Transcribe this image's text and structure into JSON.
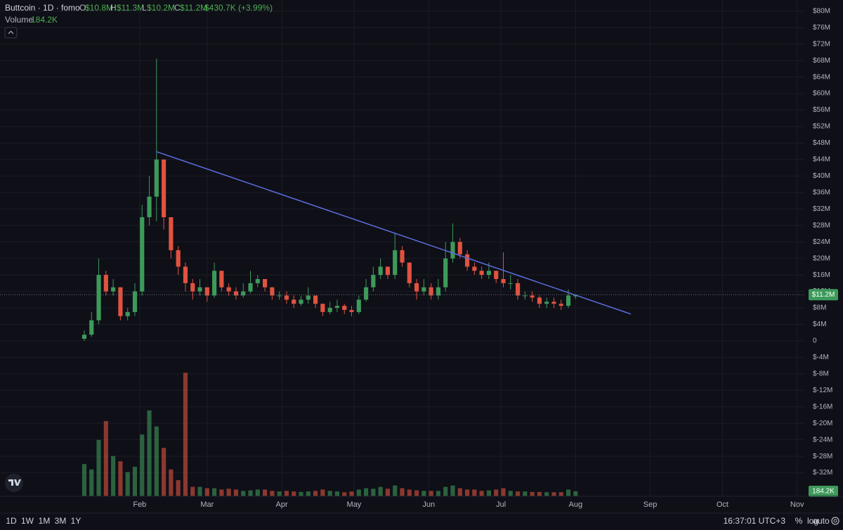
{
  "chart_data": {
    "type": "candlestick",
    "title": "Buttcoin · 1D · fomo",
    "legend": {
      "open_key": "O",
      "open": "$10.8M",
      "high_key": "H",
      "high": "$11.3M",
      "low_key": "L",
      "low": "$10.2M",
      "close_key": "C",
      "change": "$430.7K (+3.99%)",
      "volume_key": "Volume"
    },
    "up_color": "#3d9a5a",
    "down_color": "#e0533f",
    "x": [
      9,
      12,
      15,
      18,
      21,
      24,
      27,
      30,
      33,
      36,
      39,
      42,
      45,
      48,
      51,
      54,
      57,
      60,
      63,
      66,
      69,
      72,
      75,
      78,
      81,
      84,
      87,
      90,
      93,
      96,
      99,
      102,
      105,
      108,
      111,
      114,
      117,
      120,
      123,
      126,
      129,
      132,
      135,
      138,
      141,
      144,
      147,
      150,
      153,
      156,
      159,
      162,
      165,
      168,
      171,
      174,
      177,
      180,
      183,
      186,
      189,
      192,
      195,
      198,
      201,
      204,
      207,
      210,
      213
    ],
    "open": [
      0.5,
      1.5,
      5,
      16,
      12,
      13,
      6,
      7,
      12,
      30,
      35,
      44,
      30,
      22,
      18,
      14,
      12,
      13,
      11,
      17,
      13,
      12,
      11,
      12,
      14,
      15,
      13,
      11,
      11,
      10,
      9,
      10,
      11,
      9,
      7,
      8,
      8.5,
      7.5,
      7,
      10,
      13,
      16,
      18,
      16,
      22,
      19,
      14,
      12,
      13,
      11,
      13,
      20,
      24,
      21,
      18,
      17,
      16,
      17,
      15,
      14,
      14,
      11,
      11,
      10.5,
      9,
      9.5,
      9,
      8.5,
      10.8
    ],
    "high": [
      2.5,
      7,
      20,
      17,
      15,
      13,
      8,
      14,
      33,
      40,
      68.5,
      44,
      30,
      23,
      19,
      15,
      15,
      13,
      19,
      17,
      14,
      13,
      14,
      17,
      16,
      15,
      13,
      12,
      12,
      11,
      11,
      13,
      11,
      9,
      9.5,
      10,
      9,
      8.5,
      11,
      15,
      18,
      20,
      18,
      26,
      23,
      19,
      15,
      15,
      14,
      15,
      24,
      28.5,
      25,
      22,
      19,
      18,
      19,
      17,
      21.5,
      16,
      15,
      12,
      12,
      11,
      10.5,
      10.5,
      10,
      12.5,
      11.3
    ],
    "low": [
      0,
      1,
      4,
      11,
      11,
      5,
      5,
      6,
      11,
      28,
      29,
      27,
      20,
      16,
      12,
      10,
      11,
      9.5,
      10.5,
      12,
      11,
      10,
      10.5,
      11.5,
      13,
      12,
      10,
      10,
      9,
      8,
      8.5,
      9,
      8,
      6,
      6.5,
      7,
      6.5,
      6,
      6.5,
      9.5,
      12,
      15,
      15,
      15,
      18,
      13,
      10,
      11,
      10,
      10,
      12,
      19,
      20,
      17,
      16,
      15,
      15,
      14,
      13,
      12.5,
      10,
      10,
      9.5,
      8,
      8,
      8,
      7.5,
      8,
      10.2
    ],
    "close": [
      1.5,
      5,
      16,
      12,
      13,
      6,
      7,
      12,
      30,
      35,
      44,
      30,
      22,
      18,
      14,
      12,
      13,
      11,
      17,
      13,
      12,
      11,
      12,
      14,
      15,
      13,
      11,
      11,
      10,
      9,
      10,
      11,
      9,
      7,
      8,
      8.5,
      7.5,
      7,
      10,
      13,
      16,
      18,
      16,
      22,
      19,
      14,
      12,
      13,
      11,
      13,
      20,
      24,
      21,
      18,
      17,
      16,
      17,
      15,
      14,
      14,
      11,
      11,
      10.5,
      9,
      9.5,
      9,
      8.5,
      11,
      11.2
    ],
    "volume": [
      1200,
      1000,
      2100,
      2800,
      1500,
      1300,
      900,
      1100,
      2300,
      3200,
      2600,
      1800,
      1000,
      600,
      4600,
      350,
      350,
      300,
      300,
      250,
      280,
      250,
      200,
      220,
      250,
      250,
      200,
      180,
      200,
      180,
      160,
      180,
      200,
      250,
      200,
      180,
      150,
      180,
      250,
      300,
      280,
      350,
      280,
      400,
      300,
      250,
      220,
      200,
      200,
      200,
      350,
      400,
      300,
      250,
      250,
      200,
      220,
      250,
      300,
      200,
      180,
      180,
      160,
      160,
      150,
      150,
      150,
      250,
      184.2
    ],
    "xlim": [
      -26,
      308
    ],
    "xticks": [
      {
        "value": 32,
        "label": "Feb"
      },
      {
        "value": 60,
        "label": "Mar"
      },
      {
        "value": 91,
        "label": "Apr"
      },
      {
        "value": 121,
        "label": "May"
      },
      {
        "value": 152,
        "label": "Jun"
      },
      {
        "value": 182,
        "label": "Jul"
      },
      {
        "value": 213,
        "label": "Aug"
      },
      {
        "value": 244,
        "label": "Sep"
      },
      {
        "value": 274,
        "label": "Oct"
      },
      {
        "value": 305,
        "label": "Nov"
      }
    ],
    "ylim": [
      -37.7,
      82.7
    ],
    "yticks": [
      {
        "value": 80,
        "label": "$80M"
      },
      {
        "value": 76,
        "label": "$76M"
      },
      {
        "value": 72,
        "label": "$72M"
      },
      {
        "value": 68,
        "label": "$68M"
      },
      {
        "value": 64,
        "label": "$64M"
      },
      {
        "value": 60,
        "label": "$60M"
      },
      {
        "value": 56,
        "label": "$56M"
      },
      {
        "value": 52,
        "label": "$52M"
      },
      {
        "value": 48,
        "label": "$48M"
      },
      {
        "value": 44,
        "label": "$44M"
      },
      {
        "value": 40,
        "label": "$40M"
      },
      {
        "value": 36,
        "label": "$36M"
      },
      {
        "value": 32,
        "label": "$32M"
      },
      {
        "value": 28,
        "label": "$28M"
      },
      {
        "value": 24,
        "label": "$24M"
      },
      {
        "value": 20,
        "label": "$20M"
      },
      {
        "value": 16,
        "label": "$16M"
      },
      {
        "value": 12,
        "label": "$12M"
      },
      {
        "value": 8,
        "label": "$8M"
      },
      {
        "value": 4,
        "label": "$4M"
      },
      0,
      {
        "value": -4,
        "label": "$-4M"
      },
      {
        "value": -8,
        "label": "$-8M"
      },
      {
        "value": -12,
        "label": "$-12M"
      },
      {
        "value": -16,
        "label": "$-16M"
      },
      {
        "value": -20,
        "label": "$-20M"
      },
      {
        "value": -24,
        "label": "$-24M"
      },
      {
        "value": -28,
        "label": "$-28M"
      },
      {
        "value": -32,
        "label": "$-32M"
      }
    ],
    "y2lim": [
      0,
      5000
    ],
    "grid": true,
    "trendline": {
      "x": [
        39,
        236
      ],
      "y": [
        45.9,
        6.5
      ],
      "color": "#5b6ee1"
    },
    "last_price": {
      "value": 11.2,
      "label": "$11.2M"
    },
    "last_volume": {
      "value": 184.2,
      "label": "184.2K"
    }
  },
  "toolbar": {
    "ranges": [
      "1D",
      "1W",
      "1M",
      "3M",
      "1Y"
    ],
    "clock": "16:37:01 UTC+3",
    "percent": "%",
    "log": "log",
    "auto": "auto"
  }
}
